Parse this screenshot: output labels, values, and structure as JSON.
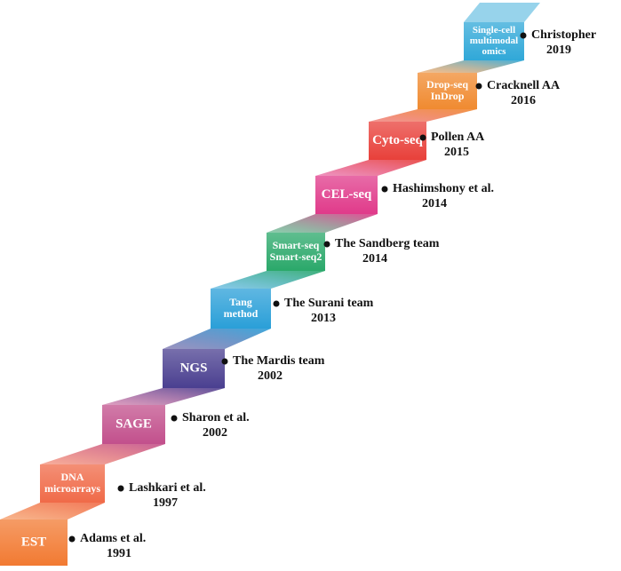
{
  "steps": [
    {
      "lines": [
        "EST"
      ],
      "author": "Adams et al.",
      "year": "1991",
      "color": "#f27a32"
    },
    {
      "lines": [
        "DNA",
        "microarrays"
      ],
      "author": "Lashkari et al.",
      "year": "1997",
      "color": "#f06a48"
    },
    {
      "lines": [
        "SAGE"
      ],
      "author": "Sharon et al.",
      "year": "2002",
      "color": "#c2508c"
    },
    {
      "lines": [
        "NGS"
      ],
      "author": "The Mardis team",
      "year": "2002",
      "color": "#4a3f90"
    },
    {
      "lines": [
        "Tang",
        "method"
      ],
      "author": "The Surani team",
      "year": "2013",
      "color": "#2a9fd8"
    },
    {
      "lines": [
        "Smart-seq",
        "Smart-seq2"
      ],
      "author": "The Sandberg team",
      "year": "2014",
      "color": "#2aa86a"
    },
    {
      "lines": [
        "CEL-seq"
      ],
      "author": "Hashimshony et al.",
      "year": "2014",
      "color": "#e03a8a"
    },
    {
      "lines": [
        "Cyto-seq"
      ],
      "author": "Pollen AA",
      "year": "2015",
      "color": "#e8403a"
    },
    {
      "lines": [
        "Drop-seq",
        "InDrop"
      ],
      "author": "Cracknell AA",
      "year": "2016",
      "color": "#f08a30"
    },
    {
      "lines": [
        "Single-cell",
        "multimodal",
        "omics"
      ],
      "author": "Christopher",
      "year": "2019",
      "color": "#30a8d8"
    }
  ]
}
